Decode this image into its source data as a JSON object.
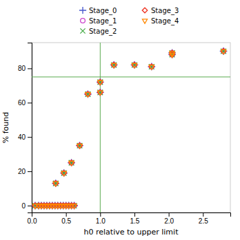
{
  "chart_data": {
    "type": "scatter",
    "x": [
      0.05,
      0.1,
      0.14,
      0.18,
      0.22,
      0.26,
      0.3,
      0.34,
      0.38,
      0.42,
      0.46,
      0.5,
      0.54,
      0.58,
      0.62,
      0.35,
      0.47,
      0.58,
      0.7,
      0.82,
      1.0,
      1.0,
      1.2,
      1.5,
      1.75,
      2.05,
      2.05,
      2.8
    ],
    "series": [
      {
        "name": "Stage_0",
        "color": "#4455cc",
        "marker": "plus",
        "values": [
          0,
          0,
          0,
          0,
          0,
          0,
          0,
          0,
          0,
          0,
          0,
          0,
          0,
          0,
          0,
          13,
          19,
          25,
          35,
          65,
          66,
          72,
          82,
          82,
          81,
          88,
          89,
          90
        ]
      },
      {
        "name": "Stage_1",
        "color": "#cc44cc",
        "marker": "circle",
        "values": [
          0,
          0,
          0,
          0,
          0,
          0,
          0,
          0,
          0,
          0,
          0,
          0,
          0,
          0,
          0,
          13,
          19,
          25,
          35,
          65,
          66,
          72,
          82,
          82,
          81,
          88,
          89,
          90
        ]
      },
      {
        "name": "Stage_2",
        "color": "#44aa44",
        "marker": "cross",
        "values": [
          0,
          0,
          0,
          0,
          0,
          0,
          0,
          0,
          0,
          0,
          0,
          0,
          0,
          0,
          0,
          13,
          19,
          25,
          35,
          65,
          66,
          72,
          82,
          82,
          81,
          88,
          89,
          90
        ]
      },
      {
        "name": "Stage_3",
        "color": "#ee3322",
        "marker": "diamond",
        "values": [
          0,
          0,
          0,
          0,
          0,
          0,
          0,
          0,
          0,
          0,
          0,
          0,
          0,
          0,
          0,
          13,
          19,
          25,
          35,
          65,
          66,
          72,
          82,
          82,
          81,
          88,
          89,
          90
        ]
      },
      {
        "name": "Stage_4",
        "color": "#ff8800",
        "marker": "triangle-down",
        "values": [
          0,
          0,
          0,
          0,
          0,
          0,
          0,
          0,
          0,
          0,
          0,
          0,
          0,
          0,
          0,
          13,
          19,
          25,
          35,
          65,
          66,
          72,
          82,
          82,
          81,
          88,
          89,
          90
        ]
      }
    ],
    "reference_lines": [
      {
        "axis": "x",
        "value": 1.0,
        "color": "#5aab4e"
      },
      {
        "axis": "y",
        "value": 75,
        "color": "#5aab4e"
      }
    ],
    "x_label": "h0 relative to upper limit",
    "y_label": "% found",
    "xlim": [
      0.0,
      2.9
    ],
    "ylim": [
      -4,
      95
    ],
    "xticks": [
      {
        "value": 0.0,
        "label": "0.0"
      },
      0.5,
      {
        "value": 1.0,
        "label": "1.0"
      },
      1.5,
      {
        "value": 2.0,
        "label": "2.0"
      },
      2.5
    ],
    "yticks": [
      0,
      20,
      40,
      60,
      80
    ],
    "grid": false
  }
}
